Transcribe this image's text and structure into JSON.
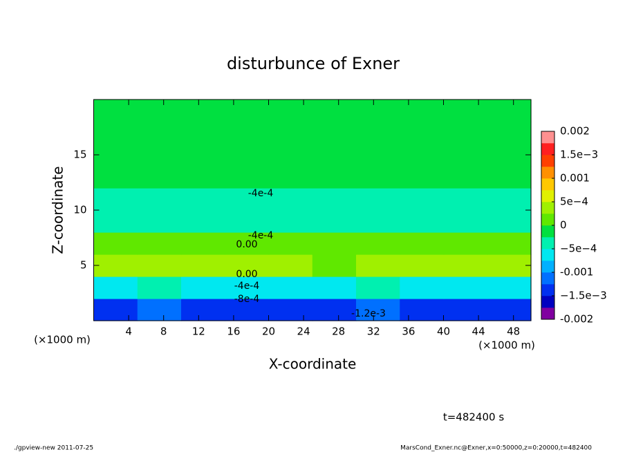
{
  "chart_data": {
    "type": "contour",
    "title": "disturbunce of Exner",
    "xlabel": "X-coordinate",
    "ylabel": "Z-coordinate",
    "x_unit_left": "(×1000 m)",
    "x_unit_right": "(×1000 m)",
    "time_label": "t=482400 s",
    "footer_left": "./gpview-new   2011-07-25",
    "footer_right": "MarsCond_Exner.nc@Exner,x=0:50000,z=0:20000,t=482400",
    "xlim": [
      0,
      50
    ],
    "ylim": [
      0,
      20
    ],
    "xticks": [
      4,
      8,
      12,
      16,
      20,
      24,
      28,
      32,
      36,
      40,
      44,
      48
    ],
    "yticks": [
      5,
      10,
      15
    ],
    "x": [
      2.5,
      7.5,
      12.5,
      17.5,
      22.5,
      27.5,
      32.5,
      37.5,
      42.5,
      47.5
    ],
    "y": [
      1,
      3,
      5,
      7,
      9,
      11,
      13,
      15,
      17,
      19
    ],
    "z": [
      [
        -0.0013,
        -0.0012,
        -0.0013,
        -0.0014,
        -0.0013,
        -0.0014,
        -0.0012,
        -0.0013,
        -0.0014,
        -0.0013
      ],
      [
        -0.0006,
        -0.0005,
        -0.0006,
        -0.0007,
        -0.0006,
        -0.0007,
        -0.0005,
        -0.0006,
        -0.0007,
        -0.0006
      ],
      [
        0.0003,
        0.0003,
        0.0004,
        0.0003,
        0.0003,
        0.0002,
        0.0003,
        0.0003,
        0.0003,
        0.0003
      ],
      [
        0.0001,
        0.0001,
        0.0002,
        0.0001,
        0.0001,
        0.0001,
        0.0001,
        0.0001,
        0.0001,
        0.0001
      ],
      [
        -0.0004,
        -0.0004,
        -0.0004,
        -0.0004,
        -0.0004,
        -0.0004,
        -0.0004,
        -0.0004,
        -0.0004,
        -0.0004
      ],
      [
        -0.0003,
        -0.0003,
        -0.0003,
        -0.0003,
        -0.0003,
        -0.0003,
        -0.0003,
        -0.0003,
        -0.0003,
        -0.0003
      ],
      [
        -0.0002,
        -0.0002,
        -0.0002,
        -0.0002,
        -0.0002,
        -0.0002,
        -0.0002,
        -0.0002,
        -0.0002,
        -0.0002
      ],
      [
        -0.0002,
        -0.0002,
        -0.0001,
        -0.0002,
        -0.0002,
        -0.0002,
        -0.0002,
        -0.0002,
        -0.0002,
        -0.0002
      ],
      [
        -0.0001,
        -0.0001,
        -0.0001,
        -0.0001,
        -0.0001,
        -0.0001,
        -0.0001,
        -0.0001,
        -0.0001,
        -0.0001
      ],
      [
        -0.0001,
        -0.0001,
        -0.0001,
        -0.0001,
        -0.0001,
        -0.0001,
        -0.0001,
        -0.0001,
        -0.0001,
        -0.0001
      ]
    ],
    "contour_labels": [
      "-4e-4",
      "-4e-4",
      "0.00",
      "0.00",
      "-4e-4",
      "-8e-4",
      "-1.2e-3"
    ],
    "clim": [
      -0.002,
      0.002
    ],
    "colors": [
      "#8000a0",
      "#0000c0",
      "#0030f0",
      "#0070ff",
      "#00b0ff",
      "#00e8f0",
      "#00f0b0",
      "#00e040",
      "#60e800",
      "#a0f000",
      "#e0f000",
      "#ffc800",
      "#ff9000",
      "#ff4000",
      "#ff2020",
      "#ff9090"
    ],
    "cticks": [
      -0.002,
      {
        "value": -0.0015,
        "label": "−1.5e−3"
      },
      -0.001,
      {
        "value": -0.0005,
        "label": "−5e−4"
      },
      0,
      {
        "value": 0.0005,
        "label": "5e−4"
      },
      0.001,
      {
        "value": 0.0015,
        "label": "1.5e−3"
      },
      0.002
    ]
  }
}
